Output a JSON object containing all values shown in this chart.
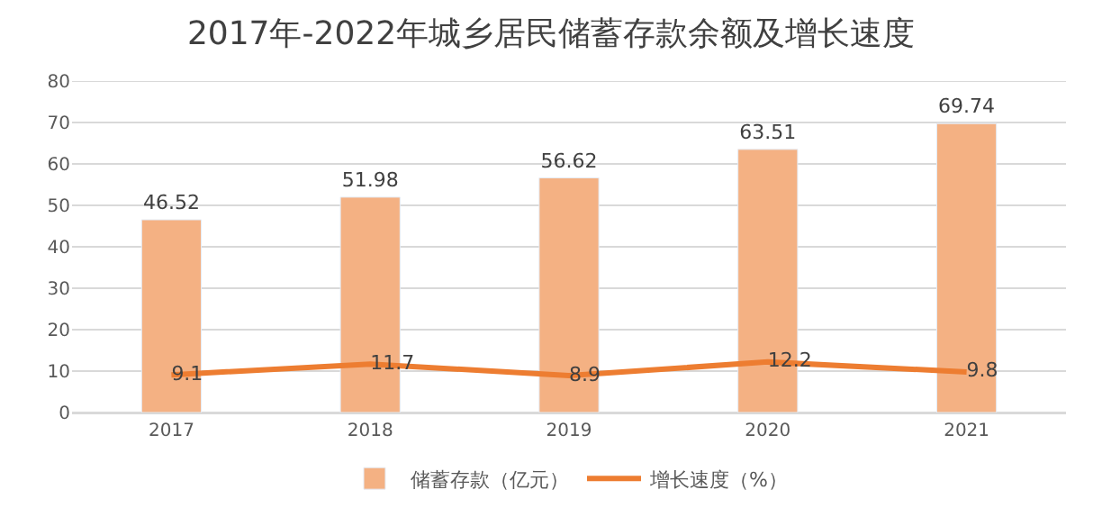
{
  "chart_data": {
    "type": "bar",
    "title": "2017年-2022年城乡居民储蓄存款余额及增长速度",
    "categories": [
      "2017",
      "2018",
      "2019",
      "2020",
      "2021"
    ],
    "series": [
      {
        "name": "储蓄存款（亿元）",
        "color": "#f4b183",
        "values": [
          46.52,
          51.98,
          56.62,
          63.51,
          69.74
        ]
      },
      {
        "name": "增长速度（%）",
        "type": "line",
        "color": "#ed7d31",
        "values": [
          9.1,
          11.7,
          8.9,
          12.2,
          9.8
        ]
      }
    ],
    "ylim": [
      0,
      80
    ],
    "yticks": [
      0,
      10,
      20,
      30,
      40,
      50,
      60,
      70,
      80
    ],
    "grid": "y",
    "legend": "bottom",
    "data_labels": true,
    "marker": "none"
  }
}
